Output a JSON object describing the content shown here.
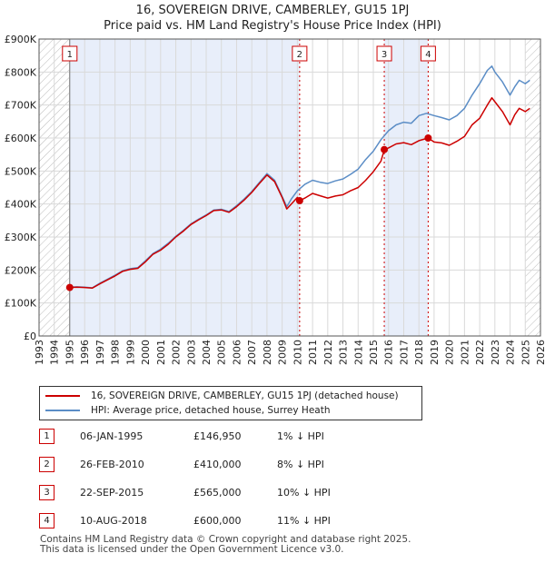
{
  "chart_data": {
    "type": "line",
    "title": "16, SOVEREIGN DRIVE, CAMBERLEY, GU15 1PJ",
    "subtitle": "Price paid vs. HM Land Registry's House Price Index (HPI)",
    "xlim": [
      1993,
      2026
    ],
    "ylim": [
      0,
      900000
    ],
    "x_ticks": [
      "1993",
      "1994",
      "1995",
      "1996",
      "1997",
      "1998",
      "1999",
      "2000",
      "2001",
      "2002",
      "2003",
      "2004",
      "2005",
      "2006",
      "2007",
      "2008",
      "2009",
      "2010",
      "2011",
      "2012",
      "2013",
      "2014",
      "2015",
      "2016",
      "2017",
      "2018",
      "2019",
      "2020",
      "2021",
      "2022",
      "2023",
      "2024",
      "2025",
      "2026"
    ],
    "y_ticks": [
      {
        "value": 0,
        "label": "£0"
      },
      {
        "value": 100000,
        "label": "£100K"
      },
      {
        "value": 200000,
        "label": "£200K"
      },
      {
        "value": 300000,
        "label": "£300K"
      },
      {
        "value": 400000,
        "label": "£400K"
      },
      {
        "value": 500000,
        "label": "£500K"
      },
      {
        "value": 600000,
        "label": "£600K"
      },
      {
        "value": 700000,
        "label": "£700K"
      },
      {
        "value": 800000,
        "label": "£800K"
      },
      {
        "value": 900000,
        "label": "£900K"
      }
    ],
    "series": [
      {
        "name": "16, SOVEREIGN DRIVE, CAMBERLEY, GU15 1PJ (detached house)",
        "color": "#cc0000",
        "points": [
          [
            1995.0,
            146950
          ],
          [
            1995.5,
            148000
          ],
          [
            1996.0,
            147000
          ],
          [
            1996.5,
            145000
          ],
          [
            1997.0,
            158000
          ],
          [
            1997.5,
            170000
          ],
          [
            1998.0,
            182000
          ],
          [
            1998.5,
            196000
          ],
          [
            1999.0,
            202000
          ],
          [
            1999.5,
            205000
          ],
          [
            2000.0,
            225000
          ],
          [
            2000.5,
            248000
          ],
          [
            2001.0,
            260000
          ],
          [
            2001.5,
            278000
          ],
          [
            2002.0,
            300000
          ],
          [
            2002.5,
            318000
          ],
          [
            2003.0,
            338000
          ],
          [
            2003.5,
            352000
          ],
          [
            2004.0,
            365000
          ],
          [
            2004.5,
            380000
          ],
          [
            2005.0,
            382000
          ],
          [
            2005.5,
            375000
          ],
          [
            2006.0,
            392000
          ],
          [
            2006.5,
            412000
          ],
          [
            2007.0,
            435000
          ],
          [
            2007.5,
            462000
          ],
          [
            2008.0,
            488000
          ],
          [
            2008.5,
            468000
          ],
          [
            2009.0,
            420000
          ],
          [
            2009.3,
            385000
          ],
          [
            2009.6,
            400000
          ],
          [
            2010.0,
            420000
          ],
          [
            2010.16,
            410000
          ],
          [
            2010.5,
            418000
          ],
          [
            2011.0,
            432000
          ],
          [
            2011.5,
            425000
          ],
          [
            2012.0,
            418000
          ],
          [
            2012.5,
            424000
          ],
          [
            2013.0,
            428000
          ],
          [
            2013.5,
            440000
          ],
          [
            2014.0,
            450000
          ],
          [
            2014.5,
            472000
          ],
          [
            2015.0,
            498000
          ],
          [
            2015.5,
            530000
          ],
          [
            2015.73,
            565000
          ],
          [
            2016.0,
            570000
          ],
          [
            2016.5,
            582000
          ],
          [
            2017.0,
            586000
          ],
          [
            2017.5,
            580000
          ],
          [
            2018.0,
            592000
          ],
          [
            2018.61,
            600000
          ],
          [
            2019.0,
            588000
          ],
          [
            2019.5,
            585000
          ],
          [
            2020.0,
            578000
          ],
          [
            2020.5,
            590000
          ],
          [
            2021.0,
            605000
          ],
          [
            2021.5,
            640000
          ],
          [
            2022.0,
            660000
          ],
          [
            2022.5,
            700000
          ],
          [
            2022.8,
            722000
          ],
          [
            2023.0,
            710000
          ],
          [
            2023.5,
            680000
          ],
          [
            2024.0,
            640000
          ],
          [
            2024.3,
            670000
          ],
          [
            2024.6,
            690000
          ],
          [
            2025.0,
            680000
          ],
          [
            2025.3,
            690000
          ]
        ]
      },
      {
        "name": "HPI: Average price, detached house, Surrey Heath",
        "color": "#5b8dc6",
        "points": [
          [
            1995.0,
            148000
          ],
          [
            1995.5,
            149000
          ],
          [
            1996.0,
            148000
          ],
          [
            1996.5,
            146000
          ],
          [
            1997.0,
            160000
          ],
          [
            1997.5,
            172000
          ],
          [
            1998.0,
            184000
          ],
          [
            1998.5,
            198000
          ],
          [
            1999.0,
            204000
          ],
          [
            1999.5,
            207000
          ],
          [
            2000.0,
            228000
          ],
          [
            2000.5,
            250000
          ],
          [
            2001.0,
            263000
          ],
          [
            2001.5,
            281000
          ],
          [
            2002.0,
            302000
          ],
          [
            2002.5,
            320000
          ],
          [
            2003.0,
            340000
          ],
          [
            2003.5,
            354000
          ],
          [
            2004.0,
            367000
          ],
          [
            2004.5,
            382000
          ],
          [
            2005.0,
            384000
          ],
          [
            2005.5,
            377000
          ],
          [
            2006.0,
            395000
          ],
          [
            2006.5,
            415000
          ],
          [
            2007.0,
            438000
          ],
          [
            2007.5,
            465000
          ],
          [
            2008.0,
            492000
          ],
          [
            2008.5,
            472000
          ],
          [
            2009.0,
            423000
          ],
          [
            2009.3,
            392000
          ],
          [
            2009.6,
            415000
          ],
          [
            2010.0,
            440000
          ],
          [
            2010.5,
            460000
          ],
          [
            2011.0,
            472000
          ],
          [
            2011.5,
            466000
          ],
          [
            2012.0,
            462000
          ],
          [
            2012.5,
            470000
          ],
          [
            2013.0,
            476000
          ],
          [
            2013.5,
            490000
          ],
          [
            2014.0,
            506000
          ],
          [
            2014.5,
            535000
          ],
          [
            2015.0,
            560000
          ],
          [
            2015.5,
            595000
          ],
          [
            2016.0,
            622000
          ],
          [
            2016.5,
            640000
          ],
          [
            2017.0,
            648000
          ],
          [
            2017.5,
            645000
          ],
          [
            2018.0,
            668000
          ],
          [
            2018.5,
            675000
          ],
          [
            2019.0,
            668000
          ],
          [
            2019.5,
            662000
          ],
          [
            2020.0,
            655000
          ],
          [
            2020.5,
            668000
          ],
          [
            2021.0,
            690000
          ],
          [
            2021.5,
            730000
          ],
          [
            2022.0,
            765000
          ],
          [
            2022.5,
            805000
          ],
          [
            2022.8,
            818000
          ],
          [
            2023.0,
            800000
          ],
          [
            2023.5,
            770000
          ],
          [
            2024.0,
            730000
          ],
          [
            2024.3,
            755000
          ],
          [
            2024.6,
            775000
          ],
          [
            2025.0,
            765000
          ],
          [
            2025.3,
            775000
          ]
        ]
      }
    ],
    "transactions": [
      {
        "label": "1",
        "x": 1995.02,
        "price": 146950,
        "date": "06-JAN-1995",
        "price_text": "£146,950",
        "hpi_text": "1% ↓ HPI"
      },
      {
        "label": "2",
        "x": 2010.15,
        "price": 410000,
        "date": "26-FEB-2010",
        "price_text": "£410,000",
        "hpi_text": "8% ↓ HPI"
      },
      {
        "label": "3",
        "x": 2015.72,
        "price": 565000,
        "date": "22-SEP-2015",
        "price_text": "£565,000",
        "hpi_text": "10% ↓ HPI"
      },
      {
        "label": "4",
        "x": 2018.61,
        "price": 600000,
        "date": "10-AUG-2018",
        "price_text": "£600,000",
        "hpi_text": "11% ↓ HPI"
      }
    ],
    "hatched_before": 1995.0,
    "hatched_after": 2025.0,
    "shaded_spans": [
      [
        1995.02,
        2010.15
      ],
      [
        2015.72,
        2018.61
      ]
    ]
  },
  "legend": {
    "property_label": "16, SOVEREIGN DRIVE, CAMBERLEY, GU15 1PJ (detached house)",
    "hpi_label": "HPI: Average price, detached house, Surrey Heath",
    "property_color": "#cc0000",
    "hpi_color": "#5b8dc6"
  },
  "footer": {
    "line1": "Contains HM Land Registry data © Crown copyright and database right 2025.",
    "line2": "This data is licensed under the Open Government Licence v3.0."
  }
}
